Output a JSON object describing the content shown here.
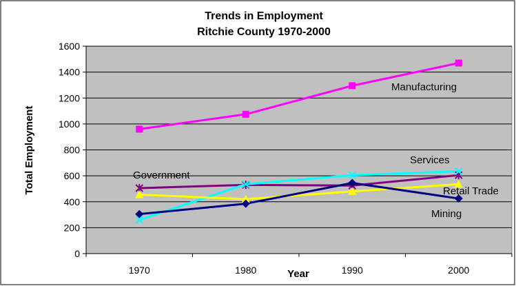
{
  "chart_data": {
    "type": "line",
    "title": "Trends in Employment",
    "subtitle": "Ritchie County 1970-2000",
    "xlabel": "Year",
    "ylabel": "Total Employment",
    "categories": [
      "1970",
      "1980",
      "1990",
      "2000"
    ],
    "ylim": [
      0,
      1600
    ],
    "yticks": [
      0,
      200,
      400,
      600,
      800,
      1000,
      1200,
      1400,
      1600
    ],
    "grid": true,
    "legend": "none",
    "series": [
      {
        "name": "Manufacturing",
        "values": [
          960,
          1075,
          1295,
          1470
        ],
        "color": "#ff00ff",
        "marker": "square"
      },
      {
        "name": "Government",
        "values": [
          505,
          530,
          525,
          605
        ],
        "color": "#800080",
        "marker": "asterisk"
      },
      {
        "name": "Services",
        "values": [
          260,
          535,
          605,
          635
        ],
        "color": "#00ffff",
        "marker": "x"
      },
      {
        "name": "Retail Trade",
        "values": [
          455,
          420,
          480,
          535
        ],
        "color": "#ffff00",
        "marker": "triangle"
      },
      {
        "name": "Mining",
        "values": [
          305,
          385,
          545,
          425
        ],
        "color": "#000080",
        "marker": "diamond"
      }
    ]
  }
}
